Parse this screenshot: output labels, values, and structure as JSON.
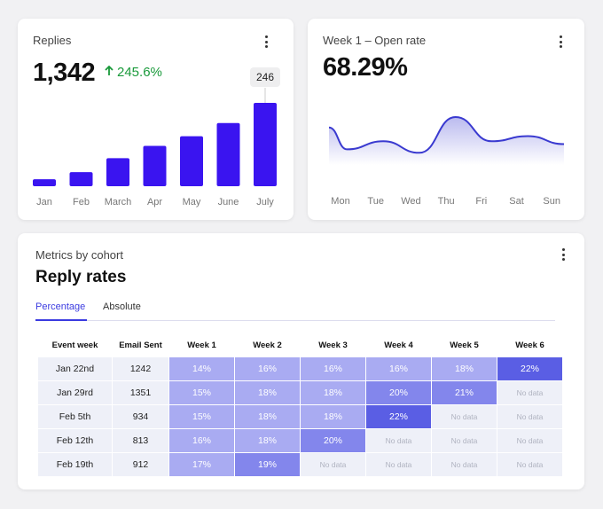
{
  "replies_card": {
    "title": "Replies",
    "value": "1,342",
    "delta": "245.6%",
    "tooltip": "246",
    "bar_color": "#3a14f0"
  },
  "chart_data": [
    {
      "type": "bar",
      "categories": [
        "Jan",
        "Feb",
        "March",
        "Apr",
        "May",
        "June",
        "July"
      ],
      "values": [
        8,
        16,
        32,
        46,
        57,
        72,
        95
      ],
      "highlight": {
        "category": "July",
        "label": "246"
      }
    },
    {
      "type": "area",
      "categories": [
        "Mon",
        "Tue",
        "Wed",
        "Thu",
        "Fri",
        "Sat",
        "Sun"
      ],
      "values": [
        62,
        24,
        38,
        18,
        80,
        38,
        47,
        33
      ],
      "x": [
        0,
        0.5,
        1.5,
        2.5,
        3.5,
        4.5,
        5.5,
        6.5
      ]
    }
  ],
  "open_rate_card": {
    "title": "Week 1 – Open rate",
    "value": "68.29%",
    "line_color": "#3a3ad0"
  },
  "cohort_card": {
    "subtitle": "Metrics by cohort",
    "title": "Reply rates",
    "tabs": [
      {
        "label": "Percentage",
        "active": true
      },
      {
        "label": "Absolute",
        "active": false
      }
    ],
    "columns": [
      "Event week",
      "Email Sent",
      "Week 1",
      "Week 2",
      "Week 3",
      "Week 4",
      "Week 5",
      "Week 6"
    ],
    "rows": [
      {
        "week": "Jan 22nd",
        "sent": "1242",
        "values": [
          "14%",
          "16%",
          "16%",
          "16%",
          "18%",
          "22%"
        ]
      },
      {
        "week": "Jan 29rd",
        "sent": "1351",
        "values": [
          "15%",
          "18%",
          "18%",
          "20%",
          "21%",
          "No data"
        ]
      },
      {
        "week": "Feb 5th",
        "sent": "934",
        "values": [
          "15%",
          "18%",
          "18%",
          "22%",
          "No data",
          "No data"
        ]
      },
      {
        "week": "Feb 12th",
        "sent": "813",
        "values": [
          "16%",
          "18%",
          "20%",
          "No data",
          "No data",
          "No data"
        ]
      },
      {
        "week": "Feb 19th",
        "sent": "912",
        "values": [
          "17%",
          "19%",
          "No data",
          "No data",
          "No data",
          "No data"
        ]
      }
    ],
    "scale_colors": {
      "low": "#a9abf2",
      "mid": "#8386ec",
      "high": "#5a5ee4"
    }
  }
}
